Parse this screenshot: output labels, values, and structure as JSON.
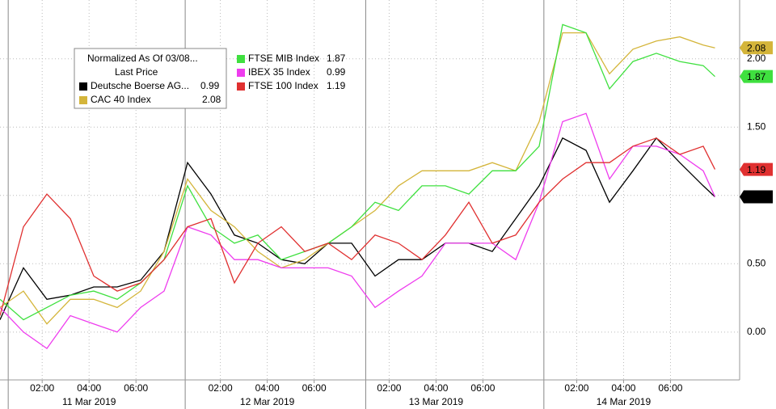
{
  "chart_data": {
    "type": "line",
    "legend": {
      "title": "Normalized As Of 03/08...",
      "subtitle": "Last Price"
    },
    "x": [
      0,
      1,
      2,
      3,
      4,
      5,
      6,
      7,
      8,
      9,
      10,
      11,
      12,
      13,
      14,
      15,
      16,
      17,
      18,
      19,
      20,
      21,
      22,
      23,
      24,
      25,
      26,
      27,
      28,
      29,
      30,
      30.5
    ],
    "xlim": [
      0,
      31.55
    ],
    "xticks": [
      {
        "value": 1.8,
        "label": "02:00"
      },
      {
        "value": 3.8,
        "label": "04:00"
      },
      {
        "value": 5.8,
        "label": "06:00"
      },
      {
        "value": 9.4,
        "label": "02:00"
      },
      {
        "value": 11.4,
        "label": "04:00"
      },
      {
        "value": 13.4,
        "label": "06:00"
      },
      {
        "value": 16.6,
        "label": "02:00"
      },
      {
        "value": 18.6,
        "label": "04:00"
      },
      {
        "value": 20.6,
        "label": "06:00"
      },
      {
        "value": 24.6,
        "label": "02:00"
      },
      {
        "value": 26.6,
        "label": "04:00"
      },
      {
        "value": 28.6,
        "label": "06:00"
      }
    ],
    "day_bounds": [
      0.35,
      7.9,
      15.6,
      23.2
    ],
    "days": [
      "11 Mar 2019",
      "12 Mar 2019",
      "13 Mar 2019",
      "14 Mar 2019"
    ],
    "ylim": [
      -0.35,
      2.43
    ],
    "yticks": [
      {
        "value": 0,
        "label": "0.00"
      },
      {
        "value": 0.5,
        "label": "0.50"
      },
      {
        "value": 1,
        "label": "1.00"
      },
      {
        "value": 1.5,
        "label": "1.50"
      },
      {
        "value": 2,
        "label": "2.00"
      }
    ],
    "grid": true,
    "series": [
      {
        "name": "Deutsche Boerse AG...",
        "color": "#000000",
        "values": [
          0.09,
          0.47,
          0.24,
          0.27,
          0.33,
          0.33,
          0.38,
          0.59,
          1.24,
          1.01,
          0.71,
          0.65,
          0.53,
          0.5,
          0.65,
          0.65,
          0.41,
          0.53,
          0.53,
          0.65,
          0.65,
          0.59,
          0.83,
          1.07,
          1.42,
          1.33,
          0.95,
          1.18,
          1.42,
          1.24,
          1.07,
          0.99
        ]
      },
      {
        "name": "CAC 40 Index",
        "color": "#d4b53a",
        "values": [
          0.18,
          0.3,
          0.06,
          0.24,
          0.24,
          0.18,
          0.3,
          0.59,
          1.12,
          0.89,
          0.77,
          0.59,
          0.47,
          0.53,
          0.65,
          0.77,
          0.89,
          1.07,
          1.18,
          1.18,
          1.18,
          1.24,
          1.18,
          1.54,
          2.19,
          2.19,
          1.89,
          2.07,
          2.13,
          2.16,
          2.1,
          2.08
        ]
      },
      {
        "name": "FTSE MIB Index",
        "color": "#3fe03f",
        "values": [
          0.24,
          0.09,
          0.18,
          0.27,
          0.3,
          0.24,
          0.36,
          0.53,
          1.07,
          0.77,
          0.65,
          0.71,
          0.53,
          0.59,
          0.65,
          0.77,
          0.95,
          0.89,
          1.07,
          1.07,
          1.01,
          1.18,
          1.18,
          1.36,
          2.25,
          2.19,
          1.78,
          1.98,
          2.04,
          1.98,
          1.95,
          1.87
        ]
      },
      {
        "name": "IBEX 35 Index",
        "color": "#ee3cee",
        "values": [
          0.18,
          0.0,
          -0.12,
          0.12,
          0.06,
          0.0,
          0.18,
          0.3,
          0.77,
          0.71,
          0.53,
          0.53,
          0.47,
          0.47,
          0.47,
          0.41,
          0.18,
          0.3,
          0.41,
          0.65,
          0.65,
          0.65,
          0.53,
          0.95,
          1.54,
          1.6,
          1.12,
          1.36,
          1.36,
          1.3,
          1.18,
          0.99
        ]
      },
      {
        "name": "FTSE 100 Index",
        "color": "#e03030",
        "values": [
          0.12,
          0.77,
          1.01,
          0.83,
          0.41,
          0.3,
          0.36,
          0.53,
          0.77,
          0.83,
          0.36,
          0.65,
          0.77,
          0.59,
          0.65,
          0.53,
          0.71,
          0.65,
          0.53,
          0.71,
          0.95,
          0.65,
          0.71,
          0.95,
          1.12,
          1.24,
          1.24,
          1.36,
          1.42,
          1.3,
          1.36,
          1.19
        ]
      }
    ]
  }
}
